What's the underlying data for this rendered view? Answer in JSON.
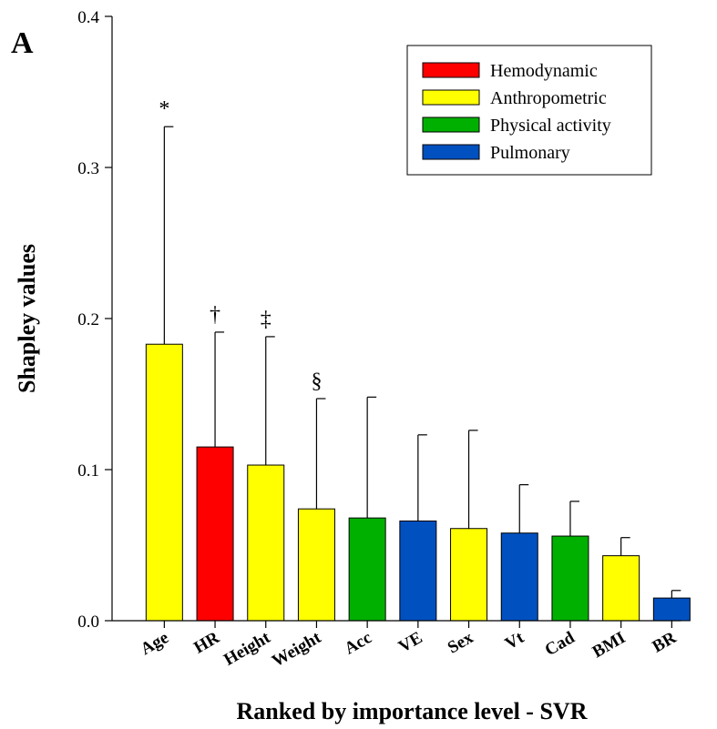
{
  "chart_data": {
    "type": "bar",
    "panel_label": "A",
    "xlabel": "Ranked by importance level - SVR",
    "ylabel": "Shapley values",
    "ylim": [
      0,
      0.4
    ],
    "y_ticks": [
      "0.0",
      "0.1",
      "0.2",
      "0.3",
      "0.4"
    ],
    "y_tick_values": [
      0,
      0.1,
      0.2,
      0.3,
      0.4
    ],
    "categories": [
      "Age",
      "HR",
      "Height",
      "Weight",
      "Acc",
      "VE",
      "Sex",
      "Vt",
      "Cad",
      "BMI",
      "BR"
    ],
    "values": [
      0.183,
      0.115,
      0.103,
      0.074,
      0.068,
      0.066,
      0.061,
      0.058,
      0.056,
      0.043,
      0.015
    ],
    "error_upper": [
      0.327,
      0.191,
      0.188,
      0.147,
      0.148,
      0.123,
      0.126,
      0.09,
      0.079,
      0.055,
      0.02
    ],
    "groups": [
      "Anthropometric",
      "Hemodynamic",
      "Anthropometric",
      "Anthropometric",
      "Physical activity",
      "Pulmonary",
      "Anthropometric",
      "Pulmonary",
      "Physical activity",
      "Anthropometric",
      "Pulmonary"
    ],
    "annotations": [
      "*",
      "†",
      "‡",
      "§",
      "",
      "",
      "",
      "",
      "",
      "",
      ""
    ],
    "legend": [
      {
        "name": "Hemodynamic",
        "color": "#ff0000"
      },
      {
        "name": "Anthropometric",
        "color": "#ffff00"
      },
      {
        "name": "Physical activity",
        "color": "#00b000"
      },
      {
        "name": "Pulmonary",
        "color": "#0050c0"
      }
    ],
    "legend_position": "top-right",
    "grid": false
  }
}
